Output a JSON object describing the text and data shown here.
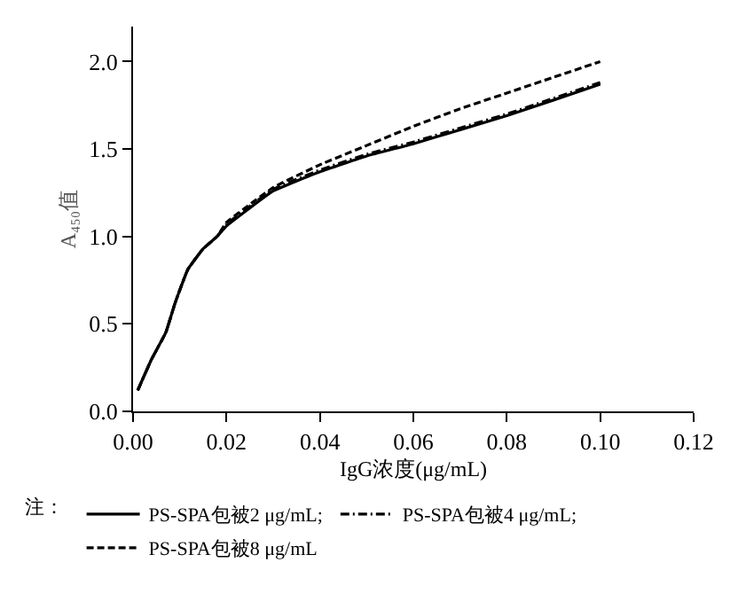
{
  "chart_data": {
    "type": "line",
    "xlabel": "IgG浓度(μg/mL)",
    "ylabel": "A₄₅₀值",
    "legend_title": "注：",
    "legend": "bottom",
    "marker": "none",
    "xlim": [
      0,
      0.12
    ],
    "xticks": [
      {
        "value": 0,
        "label": "0.00"
      },
      {
        "value": 0.02,
        "label": "0.02"
      },
      {
        "value": 0.04,
        "label": "0.04"
      },
      {
        "value": 0.06,
        "label": "0.06"
      },
      {
        "value": 0.08,
        "label": "0.08"
      },
      {
        "value": 0.1,
        "label": "0.10"
      },
      {
        "value": 0.12,
        "label": "0.12"
      }
    ],
    "ylim": [
      0,
      2.2
    ],
    "yticks": [
      {
        "value": 0,
        "label": "0.0"
      },
      {
        "value": 0.5,
        "label": "0.5"
      },
      {
        "value": 1,
        "label": "1.0"
      },
      {
        "value": 1.5,
        "label": "1.5"
      },
      {
        "value": 2,
        "label": "2.0"
      }
    ],
    "x": [
      0.001,
      0.004,
      0.007,
      0.009,
      0.0117,
      0.015,
      0.018,
      0.02,
      0.03,
      0.04,
      0.05,
      0.06,
      0.07,
      0.08,
      0.09,
      0.1
    ],
    "series": [
      {
        "name": "PS-SPA包被2 μg/mL;",
        "color": "#000000",
        "line_style": "solid",
        "values": [
          0.12,
          0.3,
          0.45,
          0.62,
          0.81,
          0.93,
          1.0,
          1.06,
          1.26,
          1.37,
          1.46,
          1.53,
          1.61,
          1.69,
          1.78,
          1.87
        ]
      },
      {
        "name": "PS-SPA包被4 μg/mL;",
        "color": "#000000",
        "line_style": "dashdot",
        "values": [
          0.12,
          0.3,
          0.45,
          0.62,
          0.81,
          0.93,
          1.0,
          1.07,
          1.27,
          1.38,
          1.47,
          1.54,
          1.62,
          1.7,
          1.79,
          1.88
        ]
      },
      {
        "name": "PS-SPA包被8 μg/mL",
        "color": "#000000",
        "line_style": "dashed",
        "values": [
          0.12,
          0.3,
          0.45,
          0.62,
          0.81,
          0.93,
          1.0,
          1.08,
          1.28,
          1.41,
          1.52,
          1.63,
          1.73,
          1.82,
          1.91,
          2.0
        ]
      }
    ]
  }
}
